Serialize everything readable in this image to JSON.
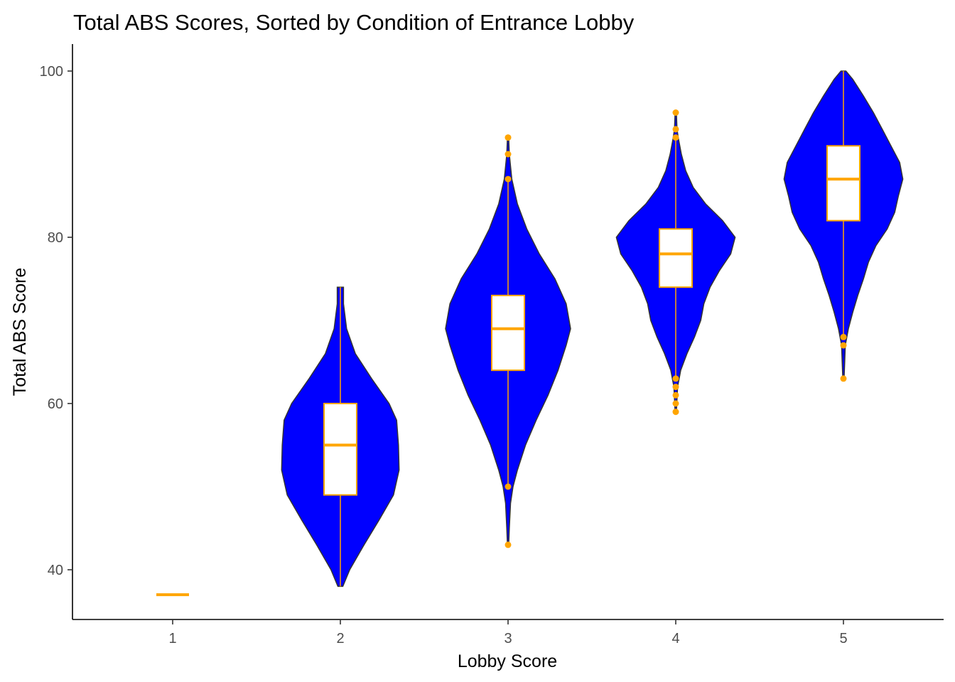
{
  "chart_data": {
    "type": "violin",
    "title": "Total ABS Scores, Sorted by Condition of Entrance Lobby",
    "xlabel": "Lobby Score",
    "ylabel": "Total ABS Score",
    "categories": [
      "1",
      "2",
      "3",
      "4",
      "5"
    ],
    "y_ticks": [
      40,
      60,
      80,
      100
    ],
    "ylim": [
      34,
      103
    ],
    "grid": false,
    "legend": "none",
    "colors": {
      "violin_fill": "#0000ff",
      "violin_outline": "#333333",
      "box": "#ffa500",
      "box_fill": "#ffffff",
      "axis": "#000000"
    },
    "series": [
      {
        "category": "1",
        "violin": null,
        "box": {
          "min": 37,
          "q1": 37,
          "median": 37,
          "q3": 37,
          "max": 37
        },
        "outliers": []
      },
      {
        "category": "2",
        "violin": {
          "y": [
            38,
            40,
            43,
            46,
            49,
            52,
            55,
            58,
            60,
            63,
            66,
            69,
            72,
            74
          ],
          "density": [
            0.04,
            0.15,
            0.38,
            0.62,
            0.85,
            0.94,
            0.93,
            0.9,
            0.78,
            0.5,
            0.24,
            0.1,
            0.05,
            0.05
          ]
        },
        "box": {
          "min": 38,
          "q1": 49,
          "median": 55,
          "q3": 60,
          "max": 74
        },
        "outliers": []
      },
      {
        "category": "3",
        "violin": {
          "y": [
            43,
            45,
            48,
            50,
            52,
            55,
            58,
            61,
            64,
            67,
            69,
            72,
            75,
            78,
            81,
            84,
            87,
            90,
            92
          ],
          "density": [
            0.01,
            0.02,
            0.04,
            0.08,
            0.15,
            0.28,
            0.45,
            0.64,
            0.8,
            0.93,
            1.0,
            0.93,
            0.75,
            0.5,
            0.3,
            0.15,
            0.06,
            0.02,
            0.01
          ]
        },
        "box": {
          "min": 50,
          "q1": 64,
          "median": 69,
          "q3": 73,
          "max": 87
        },
        "outliers": [
          43,
          50,
          87,
          90,
          92
        ]
      },
      {
        "category": "4",
        "violin": {
          "y": [
            59,
            62,
            64,
            66,
            68,
            70,
            72,
            74,
            76,
            78,
            80,
            82,
            84,
            86,
            88,
            90,
            92,
            93,
            95
          ],
          "density": [
            0.01,
            0.03,
            0.08,
            0.18,
            0.3,
            0.4,
            0.45,
            0.55,
            0.7,
            0.88,
            0.95,
            0.75,
            0.48,
            0.28,
            0.16,
            0.09,
            0.04,
            0.02,
            0.01
          ]
        },
        "box": {
          "min": 63,
          "q1": 74,
          "median": 78,
          "q3": 81,
          "max": 92
        },
        "outliers": [
          59,
          60,
          61,
          62,
          63,
          92,
          93,
          95
        ]
      },
      {
        "category": "5",
        "violin": {
          "y": [
            63,
            65,
            67,
            69,
            71,
            73,
            75,
            77,
            79,
            81,
            83,
            85,
            87,
            89,
            91,
            93,
            95,
            97,
            99,
            100
          ],
          "density": [
            0.01,
            0.02,
            0.03,
            0.08,
            0.15,
            0.23,
            0.32,
            0.4,
            0.52,
            0.7,
            0.82,
            0.88,
            0.95,
            0.9,
            0.76,
            0.62,
            0.48,
            0.32,
            0.15,
            0.04
          ]
        },
        "box": {
          "min": 68,
          "q1": 82,
          "median": 87,
          "q3": 91,
          "max": 100
        },
        "outliers": [
          63,
          67,
          68
        ]
      }
    ]
  }
}
